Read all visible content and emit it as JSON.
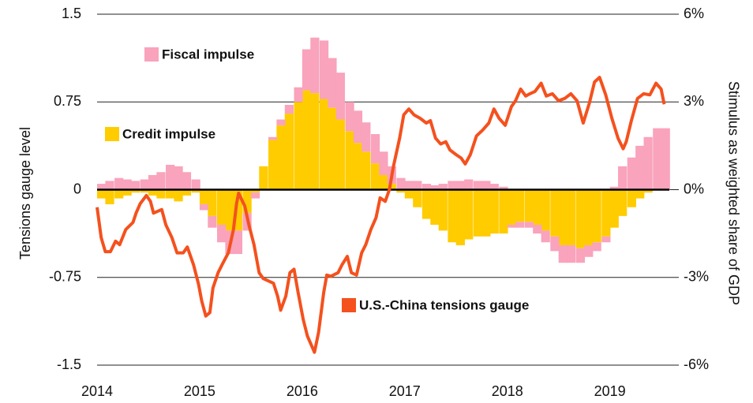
{
  "chart_data": {
    "type": "combo",
    "y_label": "Tensions gauge level",
    "y2_label": "Stimulus as weighted share of GDP",
    "xlim": [
      2014,
      2019.58
    ],
    "xticks": [
      2014,
      2015,
      2016,
      2017,
      2018,
      2019
    ],
    "ylim": [
      -1.5,
      1.5
    ],
    "yticks": [
      -1.5,
      -0.75,
      0,
      0.75,
      1.5
    ],
    "y2lim": [
      -6,
      6
    ],
    "y2ticks": [
      {
        "value": -6,
        "label": "-6%"
      },
      {
        "value": -3,
        "label": "-3%"
      },
      {
        "value": 0,
        "label": "0%"
      },
      {
        "value": 3,
        "label": "3%"
      },
      {
        "value": 6,
        "label": "6%"
      }
    ],
    "grid": true,
    "stacked": true,
    "series": [
      {
        "name": "Credit impulse",
        "type": "bar",
        "axis": "y2",
        "color": "#ffcc00",
        "x": [
          2014.0,
          2014.08,
          2014.17,
          2014.25,
          2014.33,
          2014.42,
          2014.5,
          2014.58,
          2014.67,
          2014.75,
          2014.83,
          2014.92,
          2015.0,
          2015.08,
          2015.17,
          2015.25,
          2015.33,
          2015.42,
          2015.5,
          2015.58,
          2015.67,
          2015.75,
          2015.83,
          2015.92,
          2016.0,
          2016.08,
          2016.17,
          2016.25,
          2016.33,
          2016.42,
          2016.5,
          2016.58,
          2016.67,
          2016.75,
          2016.83,
          2016.92,
          2017.0,
          2017.08,
          2017.17,
          2017.25,
          2017.33,
          2017.42,
          2017.5,
          2017.58,
          2017.67,
          2017.75,
          2017.83,
          2017.92,
          2018.0,
          2018.08,
          2018.17,
          2018.25,
          2018.33,
          2018.42,
          2018.5,
          2018.58,
          2018.67,
          2018.75,
          2018.83,
          2018.92,
          2019.0,
          2019.08,
          2019.17,
          2019.25,
          2019.33,
          2019.42,
          2019.5
        ],
        "values": [
          -0.3,
          -0.5,
          -0.3,
          -0.2,
          -0.1,
          -0.1,
          -0.2,
          -0.3,
          -0.3,
          -0.4,
          -0.2,
          -0.1,
          -0.5,
          -0.9,
          -1.2,
          -1.4,
          -1.4,
          -0.8,
          -0.1,
          0.8,
          1.7,
          2.2,
          2.6,
          3.0,
          3.4,
          3.3,
          3.1,
          2.8,
          2.4,
          2.0,
          1.6,
          1.3,
          0.9,
          0.5,
          0.2,
          -0.1,
          -0.3,
          -0.6,
          -1.0,
          -1.2,
          -1.4,
          -1.8,
          -1.9,
          -1.7,
          -1.6,
          -1.6,
          -1.5,
          -1.5,
          -1.2,
          -1.1,
          -1.1,
          -1.2,
          -1.4,
          -1.6,
          -1.9,
          -1.9,
          -2.0,
          -1.9,
          -1.8,
          -1.6,
          -1.3,
          -0.9,
          -0.6,
          -0.3,
          -0.1,
          0,
          0
        ]
      },
      {
        "name": "Fiscal impulse",
        "type": "bar",
        "axis": "y2",
        "color": "#f9a3bc",
        "x": [
          2014.0,
          2014.08,
          2014.17,
          2014.25,
          2014.33,
          2014.42,
          2014.5,
          2014.58,
          2014.67,
          2014.75,
          2014.83,
          2014.92,
          2015.0,
          2015.08,
          2015.17,
          2015.25,
          2015.33,
          2015.42,
          2015.5,
          2015.58,
          2015.67,
          2015.75,
          2015.83,
          2015.92,
          2016.0,
          2016.08,
          2016.17,
          2016.25,
          2016.33,
          2016.42,
          2016.5,
          2016.58,
          2016.67,
          2016.75,
          2016.83,
          2016.92,
          2017.0,
          2017.08,
          2017.17,
          2017.25,
          2017.33,
          2017.42,
          2017.5,
          2017.58,
          2017.67,
          2017.75,
          2017.83,
          2017.92,
          2018.0,
          2018.08,
          2018.17,
          2018.25,
          2018.33,
          2018.42,
          2018.5,
          2018.58,
          2018.67,
          2018.75,
          2018.83,
          2018.92,
          2019.0,
          2019.08,
          2019.17,
          2019.25,
          2019.33,
          2019.42,
          2019.5
        ],
        "values": [
          0.2,
          0.3,
          0.4,
          0.35,
          0.3,
          0.35,
          0.5,
          0.6,
          0.85,
          0.8,
          0.6,
          0.35,
          -0.2,
          -0.4,
          -0.6,
          -0.8,
          -0.8,
          -0.6,
          -0.2,
          0,
          0.1,
          0.2,
          0.3,
          0.5,
          1.4,
          1.9,
          2.0,
          1.7,
          1.6,
          1.0,
          1.1,
          1.0,
          1.0,
          0.8,
          0.6,
          0.4,
          0.3,
          0.3,
          0.2,
          0.15,
          0.2,
          0.3,
          0.3,
          0.35,
          0.3,
          0.3,
          0.2,
          0.1,
          -0.1,
          -0.2,
          -0.2,
          -0.3,
          -0.4,
          -0.5,
          -0.6,
          -0.6,
          -0.5,
          -0.4,
          -0.3,
          -0.2,
          0.1,
          0.8,
          1.1,
          1.5,
          1.8,
          2.1,
          2.1
        ]
      },
      {
        "name": "U.S.-China tensions gauge",
        "type": "line",
        "axis": "y",
        "color": "#f4511e",
        "x": [
          2014.0,
          2014.04,
          2014.08,
          2014.13,
          2014.18,
          2014.22,
          2014.28,
          2014.35,
          2014.38,
          2014.42,
          2014.48,
          2014.52,
          2014.55,
          2014.63,
          2014.67,
          2014.73,
          2014.78,
          2014.84,
          2014.88,
          2014.94,
          2014.99,
          2015.02,
          2015.06,
          2015.1,
          2015.13,
          2015.18,
          2015.22,
          2015.28,
          2015.33,
          2015.36,
          2015.38,
          2015.44,
          2015.48,
          2015.53,
          2015.58,
          2015.62,
          2015.67,
          2015.72,
          2015.76,
          2015.79,
          2015.84,
          2015.88,
          2015.92,
          2015.96,
          2016.01,
          2016.05,
          2016.12,
          2016.16,
          2016.21,
          2016.24,
          2016.28,
          2016.35,
          2016.39,
          2016.44,
          2016.48,
          2016.53,
          2016.58,
          2016.62,
          2016.67,
          2016.72,
          2016.76,
          2016.81,
          2016.85,
          2016.89,
          2016.95,
          2016.99,
          2017.04,
          2017.09,
          2017.15,
          2017.21,
          2017.25,
          2017.3,
          2017.35,
          2017.4,
          2017.44,
          2017.5,
          2017.55,
          2017.59,
          2017.64,
          2017.7,
          2017.76,
          2017.82,
          2017.87,
          2017.92,
          2017.98,
          2018.04,
          2018.08,
          2018.13,
          2018.18,
          2018.22,
          2018.27,
          2018.33,
          2018.38,
          2018.44,
          2018.5,
          2018.56,
          2018.62,
          2018.68,
          2018.74,
          2018.8,
          2018.85,
          2018.9,
          2018.96,
          2019.02,
          2019.08,
          2019.13,
          2019.16,
          2019.21,
          2019.27,
          2019.33,
          2019.39,
          2019.45,
          2019.5,
          2019.53
        ],
        "values": [
          -0.15,
          -0.41,
          -0.53,
          -0.53,
          -0.44,
          -0.47,
          -0.34,
          -0.28,
          -0.2,
          -0.12,
          -0.05,
          -0.1,
          -0.2,
          -0.17,
          -0.3,
          -0.41,
          -0.54,
          -0.54,
          -0.49,
          -0.64,
          -0.81,
          -0.95,
          -1.08,
          -1.05,
          -0.84,
          -0.71,
          -0.64,
          -0.54,
          -0.34,
          -0.12,
          -0.03,
          -0.14,
          -0.3,
          -0.47,
          -0.71,
          -0.76,
          -0.78,
          -0.8,
          -0.91,
          -1.03,
          -0.91,
          -0.71,
          -0.68,
          -0.88,
          -1.11,
          -1.25,
          -1.39,
          -1.22,
          -0.88,
          -0.73,
          -0.74,
          -0.71,
          -0.64,
          -0.57,
          -0.71,
          -0.73,
          -0.54,
          -0.47,
          -0.34,
          -0.24,
          -0.07,
          -0.1,
          0,
          0.2,
          0.44,
          0.64,
          0.69,
          0.64,
          0.61,
          0.57,
          0.59,
          0.44,
          0.39,
          0.41,
          0.34,
          0.3,
          0.27,
          0.22,
          0.3,
          0.46,
          0.51,
          0.57,
          0.69,
          0.61,
          0.55,
          0.71,
          0.76,
          0.86,
          0.8,
          0.82,
          0.84,
          0.91,
          0.8,
          0.82,
          0.76,
          0.78,
          0.82,
          0.76,
          0.57,
          0.74,
          0.92,
          0.96,
          0.81,
          0.61,
          0.44,
          0.35,
          0.41,
          0.59,
          0.78,
          0.82,
          0.81,
          0.91,
          0.86,
          0.73
        ]
      }
    ]
  }
}
